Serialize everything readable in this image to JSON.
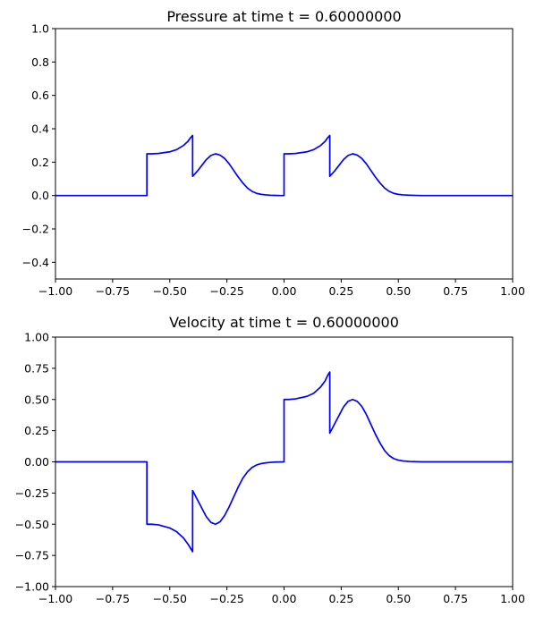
{
  "chart_data": [
    {
      "type": "line",
      "title": "Pressure at time t =     0.60000000",
      "xlabel": "",
      "ylabel": "",
      "xlim": [
        -1.0,
        1.0
      ],
      "ylim": [
        -0.5,
        1.0
      ],
      "grid": false,
      "x_ticks": [
        -1.0,
        -0.75,
        -0.5,
        -0.25,
        0.0,
        0.25,
        0.5,
        0.75,
        1.0
      ],
      "x_tick_labels": [
        "−1.00",
        "−0.75",
        "−0.50",
        "−0.25",
        "0.00",
        "0.25",
        "0.50",
        "0.75",
        "1.00"
      ],
      "y_ticks": [
        -0.4,
        -0.2,
        0.0,
        0.2,
        0.4,
        0.6,
        0.8,
        1.0
      ],
      "y_tick_labels": [
        "−0.4",
        "−0.2",
        "0.0",
        "0.2",
        "0.4",
        "0.6",
        "0.8",
        "1.0"
      ],
      "series": [
        {
          "color": "#0000ff",
          "x": [
            -1.0,
            -0.62,
            -0.6,
            -0.6,
            -0.58,
            -0.55,
            -0.5,
            -0.47,
            -0.44,
            -0.42,
            -0.41,
            -0.4,
            -0.4,
            -0.38,
            -0.36,
            -0.34,
            -0.32,
            -0.3,
            -0.28,
            -0.26,
            -0.24,
            -0.22,
            -0.2,
            -0.18,
            -0.16,
            -0.14,
            -0.12,
            -0.1,
            -0.08,
            -0.06,
            -0.04,
            -0.02,
            0.0,
            0.0,
            0.02,
            0.05,
            0.1,
            0.13,
            0.16,
            0.18,
            0.19,
            0.2,
            0.2,
            0.22,
            0.24,
            0.26,
            0.28,
            0.3,
            0.32,
            0.34,
            0.36,
            0.38,
            0.4,
            0.42,
            0.44,
            0.46,
            0.48,
            0.5,
            0.52,
            0.55,
            0.6,
            0.7,
            0.8,
            1.0
          ],
          "y": [
            0.0,
            0.0,
            0.0,
            0.25,
            0.25,
            0.252,
            0.262,
            0.275,
            0.3,
            0.325,
            0.345,
            0.36,
            0.115,
            0.145,
            0.18,
            0.215,
            0.24,
            0.25,
            0.242,
            0.222,
            0.19,
            0.15,
            0.11,
            0.075,
            0.045,
            0.025,
            0.013,
            0.007,
            0.004,
            0.002,
            0.001,
            0.0,
            0.0,
            0.25,
            0.25,
            0.252,
            0.262,
            0.275,
            0.3,
            0.325,
            0.345,
            0.36,
            0.115,
            0.145,
            0.18,
            0.215,
            0.24,
            0.25,
            0.242,
            0.222,
            0.19,
            0.15,
            0.11,
            0.075,
            0.045,
            0.025,
            0.013,
            0.007,
            0.004,
            0.002,
            0.0,
            0.0,
            0.0,
            0.0
          ]
        }
      ]
    },
    {
      "type": "line",
      "title": "Velocity at time t =     0.60000000",
      "xlabel": "",
      "ylabel": "",
      "xlim": [
        -1.0,
        1.0
      ],
      "ylim": [
        -1.0,
        1.0
      ],
      "grid": false,
      "x_ticks": [
        -1.0,
        -0.75,
        -0.5,
        -0.25,
        0.0,
        0.25,
        0.5,
        0.75,
        1.0
      ],
      "x_tick_labels": [
        "−1.00",
        "−0.75",
        "−0.50",
        "−0.25",
        "0.00",
        "0.25",
        "0.50",
        "0.75",
        "1.00"
      ],
      "y_ticks": [
        -1.0,
        -0.75,
        -0.5,
        -0.25,
        0.0,
        0.25,
        0.5,
        0.75,
        1.0
      ],
      "y_tick_labels": [
        "−1.00",
        "−0.75",
        "−0.50",
        "−0.25",
        "0.00",
        "0.25",
        "0.50",
        "0.75",
        "1.00"
      ],
      "series": [
        {
          "color": "#0000ff",
          "x": [
            -1.0,
            -0.62,
            -0.6,
            -0.6,
            -0.58,
            -0.55,
            -0.5,
            -0.47,
            -0.44,
            -0.42,
            -0.41,
            -0.4,
            -0.4,
            -0.38,
            -0.36,
            -0.34,
            -0.32,
            -0.3,
            -0.28,
            -0.26,
            -0.24,
            -0.22,
            -0.2,
            -0.18,
            -0.16,
            -0.14,
            -0.12,
            -0.1,
            -0.08,
            -0.06,
            -0.04,
            -0.02,
            0.0,
            0.0,
            0.02,
            0.05,
            0.1,
            0.13,
            0.16,
            0.18,
            0.19,
            0.2,
            0.2,
            0.22,
            0.24,
            0.26,
            0.28,
            0.3,
            0.32,
            0.34,
            0.36,
            0.38,
            0.4,
            0.42,
            0.44,
            0.46,
            0.48,
            0.5,
            0.52,
            0.55,
            0.6,
            0.7,
            0.8,
            1.0
          ],
          "y": [
            0.0,
            0.0,
            0.0,
            -0.5,
            -0.5,
            -0.505,
            -0.53,
            -0.56,
            -0.61,
            -0.66,
            -0.69,
            -0.72,
            -0.23,
            -0.3,
            -0.37,
            -0.44,
            -0.485,
            -0.5,
            -0.48,
            -0.43,
            -0.36,
            -0.28,
            -0.2,
            -0.13,
            -0.08,
            -0.045,
            -0.025,
            -0.014,
            -0.008,
            -0.004,
            -0.002,
            -0.001,
            0.0,
            0.5,
            0.5,
            0.505,
            0.525,
            0.55,
            0.6,
            0.65,
            0.69,
            0.72,
            0.23,
            0.3,
            0.37,
            0.44,
            0.485,
            0.5,
            0.485,
            0.445,
            0.38,
            0.3,
            0.22,
            0.15,
            0.09,
            0.05,
            0.026,
            0.014,
            0.007,
            0.003,
            0.0,
            0.0,
            0.0,
            0.0
          ]
        }
      ]
    }
  ]
}
